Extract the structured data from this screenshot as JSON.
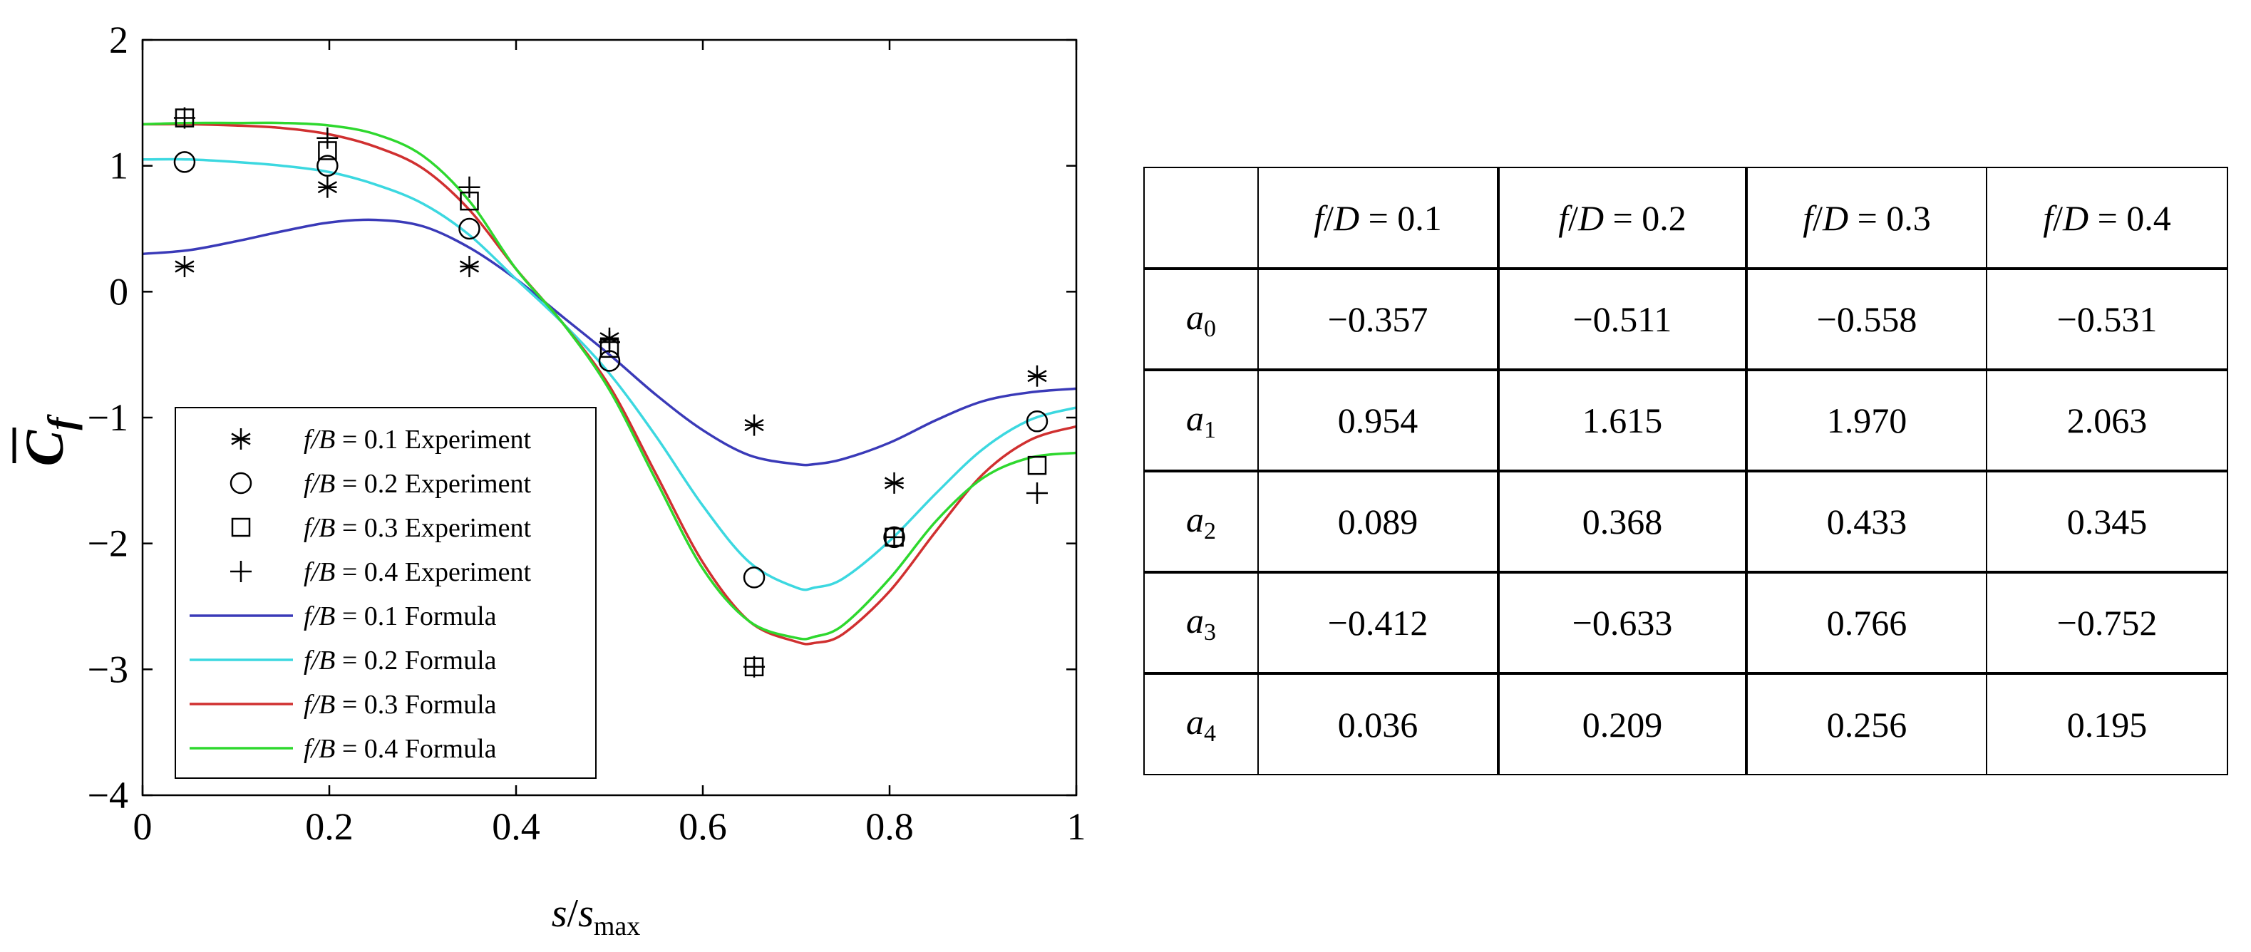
{
  "chart_data": {
    "type": "line",
    "xlabel_main": "s",
    "xlabel_sep": "/",
    "xlabel_sub_base": "s",
    "xlabel_sub": "max",
    "ylabel": "C",
    "ylabel_sub": "f",
    "xlim": [
      0,
      1
    ],
    "ylim": [
      -4,
      2
    ],
    "xticks": [
      "0",
      "0.2",
      "0.4",
      "0.6",
      "0.8",
      "1"
    ],
    "yticks": [
      "2",
      "1",
      "0",
      "−1",
      "−2",
      "−3",
      "−4"
    ],
    "experiment_x": [
      0.045,
      0.198,
      0.35,
      0.5,
      0.655,
      0.805,
      0.958
    ],
    "experiments": [
      {
        "name": "f/B = 0.1 Experiment",
        "label_italic": "f/B",
        "label_rest": " = 0.1 Experiment",
        "marker": "asterisk",
        "values": [
          0.2,
          0.83,
          0.2,
          -0.37,
          -1.06,
          -1.52,
          -0.67
        ]
      },
      {
        "name": "f/B = 0.2 Experiment",
        "label_italic": "f/B",
        "label_rest": " = 0.2 Experiment",
        "marker": "circle",
        "values": [
          1.03,
          1.0,
          0.5,
          -0.55,
          -2.27,
          -1.95,
          -1.03
        ]
      },
      {
        "name": "f/B = 0.3 Experiment",
        "label_italic": "f/B",
        "label_rest": " = 0.3 Experiment",
        "marker": "square",
        "values": [
          1.38,
          1.12,
          0.72,
          -0.45,
          -2.98,
          -1.95,
          -1.38
        ]
      },
      {
        "name": "f/B = 0.4 Experiment",
        "label_italic": "f/B",
        "label_rest": " = 0.4 Experiment",
        "marker": "plus",
        "values": [
          1.38,
          1.22,
          0.83,
          -0.4,
          -2.98,
          -1.95,
          -1.6
        ]
      }
    ],
    "formula_x": [
      0,
      0.05,
      0.1,
      0.15,
      0.2,
      0.25,
      0.3,
      0.35,
      0.4,
      0.45,
      0.5,
      0.55,
      0.6,
      0.65,
      0.7,
      0.72,
      0.75,
      0.8,
      0.85,
      0.9,
      0.95,
      1.0
    ],
    "formulas": [
      {
        "name": "f/B = 0.1 Formula",
        "label_italic": "f/B",
        "label_rest": " = 0.1 Formula",
        "color": "#3a3ab8",
        "values": [
          0.3,
          0.33,
          0.4,
          0.48,
          0.55,
          0.57,
          0.52,
          0.35,
          0.1,
          -0.2,
          -0.5,
          -0.82,
          -1.1,
          -1.3,
          -1.37,
          -1.37,
          -1.33,
          -1.2,
          -1.02,
          -0.87,
          -0.8,
          -0.77
        ]
      },
      {
        "name": "f/B = 0.2 Formula",
        "label_italic": "f/B",
        "label_rest": " = 0.2 Formula",
        "color": "#3cd8e0",
        "values": [
          1.05,
          1.05,
          1.03,
          1.0,
          0.95,
          0.85,
          0.7,
          0.45,
          0.1,
          -0.25,
          -0.65,
          -1.15,
          -1.7,
          -2.15,
          -2.35,
          -2.35,
          -2.28,
          -1.98,
          -1.6,
          -1.25,
          -1.02,
          -0.92
        ]
      },
      {
        "name": "f/B = 0.3 Formula",
        "label_italic": "f/B",
        "label_rest": " = 0.3 Formula",
        "color": "#d03030",
        "values": [
          1.33,
          1.33,
          1.32,
          1.3,
          1.25,
          1.15,
          0.98,
          0.65,
          0.18,
          -0.25,
          -0.75,
          -1.45,
          -2.15,
          -2.62,
          -2.78,
          -2.79,
          -2.72,
          -2.38,
          -1.9,
          -1.45,
          -1.18,
          -1.07
        ]
      },
      {
        "name": "f/B = 0.4 Formula",
        "label_italic": "f/B",
        "label_rest": " = 0.4 Formula",
        "color": "#2ed82e",
        "values": [
          1.33,
          1.34,
          1.34,
          1.34,
          1.32,
          1.25,
          1.08,
          0.72,
          0.18,
          -0.25,
          -0.78,
          -1.5,
          -2.2,
          -2.62,
          -2.75,
          -2.74,
          -2.65,
          -2.28,
          -1.82,
          -1.48,
          -1.32,
          -1.28
        ]
      }
    ],
    "legend_position": "lower-left"
  },
  "table": {
    "header": [
      {
        "italic": "f",
        "slash": "/",
        "italic2": "D",
        "rest": " = 0.1"
      },
      {
        "italic": "f",
        "slash": "/",
        "italic2": "D",
        "rest": " = 0.2"
      },
      {
        "italic": "f",
        "slash": "/",
        "italic2": "D",
        "rest": " = 0.3"
      },
      {
        "italic": "f",
        "slash": "/",
        "italic2": "D",
        "rest": " = 0.4"
      }
    ],
    "rows": [
      {
        "label": "a",
        "sub": "0",
        "cells": [
          "−0.357",
          "−0.511",
          "−0.558",
          "−0.531"
        ]
      },
      {
        "label": "a",
        "sub": "1",
        "cells": [
          "0.954",
          "1.615",
          "1.970",
          "2.063"
        ]
      },
      {
        "label": "a",
        "sub": "2",
        "cells": [
          "0.089",
          "0.368",
          "0.433",
          "0.345"
        ]
      },
      {
        "label": "a",
        "sub": "3",
        "cells": [
          "−0.412",
          "−0.633",
          "0.766",
          "−0.752"
        ]
      },
      {
        "label": "a",
        "sub": "4",
        "cells": [
          "0.036",
          "0.209",
          "0.256",
          "0.195"
        ]
      }
    ]
  }
}
